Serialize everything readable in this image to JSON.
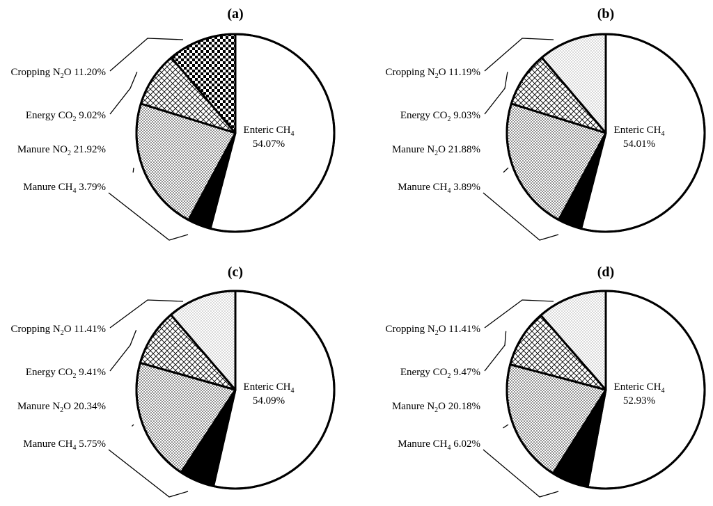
{
  "chart_data": [
    {
      "type": "pie",
      "panel": "(a)",
      "slices": [
        {
          "name": "Enteric CH4",
          "value": 54.07,
          "pattern": "white",
          "text_parts": [
            "Enteric CH",
            "4",
            ""
          ],
          "value_text": "54.07%"
        },
        {
          "name": "Manure CH4",
          "value": 3.79,
          "pattern": "black",
          "text_parts": [
            "Manure CH",
            "4",
            " 3.79%"
          ]
        },
        {
          "name": "Manure NO2",
          "value": 21.92,
          "pattern": "dots",
          "text_parts": [
            "Manure NO",
            "2",
            " 21.92%"
          ]
        },
        {
          "name": "Energy CO2",
          "value": 9.02,
          "pattern": "cross",
          "text_parts": [
            "Energy CO",
            "2",
            " 9.02%"
          ]
        },
        {
          "name": "Cropping N2O",
          "value": 11.2,
          "pattern": "checker",
          "text_parts": [
            "Cropping N",
            "2",
            "O 11.20%"
          ]
        }
      ]
    },
    {
      "type": "pie",
      "panel": "(b)",
      "slices": [
        {
          "name": "Enteric CH4",
          "value": 54.01,
          "pattern": "white",
          "text_parts": [
            "Enteric CH",
            "4",
            ""
          ],
          "value_text": "54.01%"
        },
        {
          "name": "Manure CH4",
          "value": 3.89,
          "pattern": "black",
          "text_parts": [
            "Manure CH",
            "4",
            " 3.89%"
          ]
        },
        {
          "name": "Manure N2O",
          "value": 21.88,
          "pattern": "dots",
          "text_parts": [
            "Manure N",
            "2",
            "O 21.88%"
          ]
        },
        {
          "name": "Energy CO2",
          "value": 9.03,
          "pattern": "cross",
          "text_parts": [
            "Energy CO",
            "2",
            " 9.03%"
          ]
        },
        {
          "name": "Cropping N2O",
          "value": 11.19,
          "pattern": "finedots",
          "text_parts": [
            "Cropping N",
            "2",
            "O 11.19%"
          ]
        }
      ]
    },
    {
      "type": "pie",
      "panel": "(c)",
      "slices": [
        {
          "name": "Enteric CH4",
          "value": 54.09,
          "pattern": "white",
          "text_parts": [
            "Enteric CH",
            "4",
            ""
          ],
          "value_text": "54.09%"
        },
        {
          "name": "Manure CH4",
          "value": 5.75,
          "pattern": "black",
          "text_parts": [
            "Manure CH",
            "4",
            " 5.75%"
          ]
        },
        {
          "name": "Manure N2O",
          "value": 20.34,
          "pattern": "dots",
          "text_parts": [
            "Manure N",
            "2",
            "O 20.34%"
          ]
        },
        {
          "name": "Energy CO2",
          "value": 9.41,
          "pattern": "cross",
          "text_parts": [
            "Energy CO",
            "2",
            " 9.41%"
          ]
        },
        {
          "name": "Cropping N2O",
          "value": 11.41,
          "pattern": "finedots",
          "text_parts": [
            "Cropping N",
            "2",
            "O 11.41%"
          ]
        }
      ]
    },
    {
      "type": "pie",
      "panel": "(d)",
      "slices": [
        {
          "name": "Enteric CH4",
          "value": 52.93,
          "pattern": "white",
          "text_parts": [
            "Enteric CH",
            "4",
            ""
          ],
          "value_text": "52.93%"
        },
        {
          "name": "Manure CH4",
          "value": 6.02,
          "pattern": "black",
          "text_parts": [
            "Manure CH",
            "4",
            " 6.02%"
          ]
        },
        {
          "name": "Manure N2O",
          "value": 20.18,
          "pattern": "dots",
          "text_parts": [
            "Manure N",
            "2",
            "O 20.18%"
          ]
        },
        {
          "name": "Energy CO2",
          "value": 9.47,
          "pattern": "cross",
          "text_parts": [
            "Energy CO",
            "2",
            " 9.47%"
          ]
        },
        {
          "name": "Cropping N2O",
          "value": 11.41,
          "pattern": "finedots",
          "text_parts": [
            "Cropping N",
            "2",
            "O 11.41%"
          ]
        }
      ]
    }
  ]
}
